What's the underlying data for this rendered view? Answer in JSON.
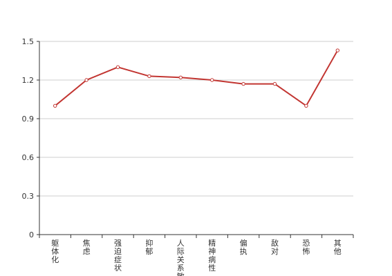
{
  "chart_data": {
    "type": "line",
    "categories": [
      "躯体化",
      "焦虑",
      "强迫症状",
      "抑郁",
      "人际关系敏感",
      "精神病性",
      "偏执",
      "敌对",
      "恐怖",
      "其他"
    ],
    "series": [
      {
        "name": null,
        "color": "#c23531",
        "values": [
          1.0,
          1.2,
          1.3,
          1.23,
          1.22,
          1.2,
          1.17,
          1.17,
          1.0,
          1.43
        ]
      }
    ],
    "ylim": [
      0,
      1.5
    ],
    "yticks": [
      0,
      0.3,
      0.6,
      0.9,
      1.2,
      1.5
    ],
    "grid": true
  }
}
